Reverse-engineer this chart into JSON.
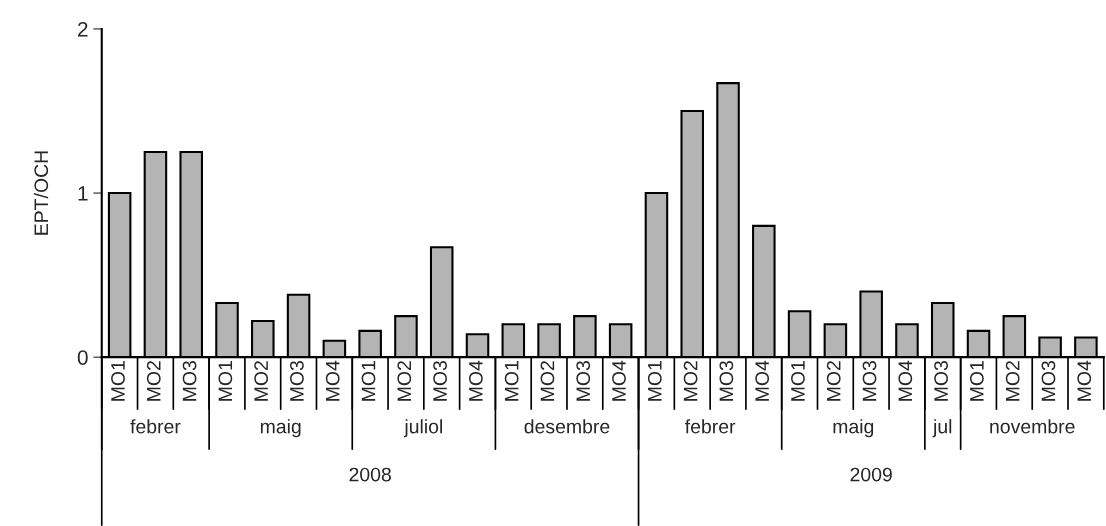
{
  "chart_data": {
    "type": "bar",
    "ylabel": "EPT/OCH",
    "categories": [
      "MO1",
      "MO2",
      "MO3",
      "MO1",
      "MO2",
      "MO3",
      "MO4",
      "MO1",
      "MO2",
      "MO3",
      "MO4",
      "MO1",
      "MO2",
      "MO3",
      "MO4",
      "MO1",
      "MO2",
      "MO3",
      "MO4",
      "MO1",
      "MO2",
      "MO3",
      "MO4",
      "MO3",
      "MO1",
      "MO2",
      "MO3",
      "MO4"
    ],
    "values": [
      1.0,
      1.25,
      1.25,
      0.33,
      0.22,
      0.38,
      0.1,
      0.16,
      0.25,
      0.67,
      0.14,
      0.2,
      0.2,
      0.25,
      0.2,
      1.0,
      1.5,
      1.67,
      0.8,
      0.28,
      0.2,
      0.4,
      0.2,
      0.33,
      0.16,
      0.25,
      0.12,
      0.12
    ],
    "color": "#b4b4b4",
    "ylim": [
      0,
      2
    ],
    "yticks": [
      0,
      1,
      2
    ],
    "grid": false,
    "legend": false,
    "annotations": [
      "febrer",
      "maig",
      "juliol",
      "desembre",
      "febrer",
      "maig",
      "jul",
      "novembre",
      "2008",
      "2009"
    ]
  }
}
